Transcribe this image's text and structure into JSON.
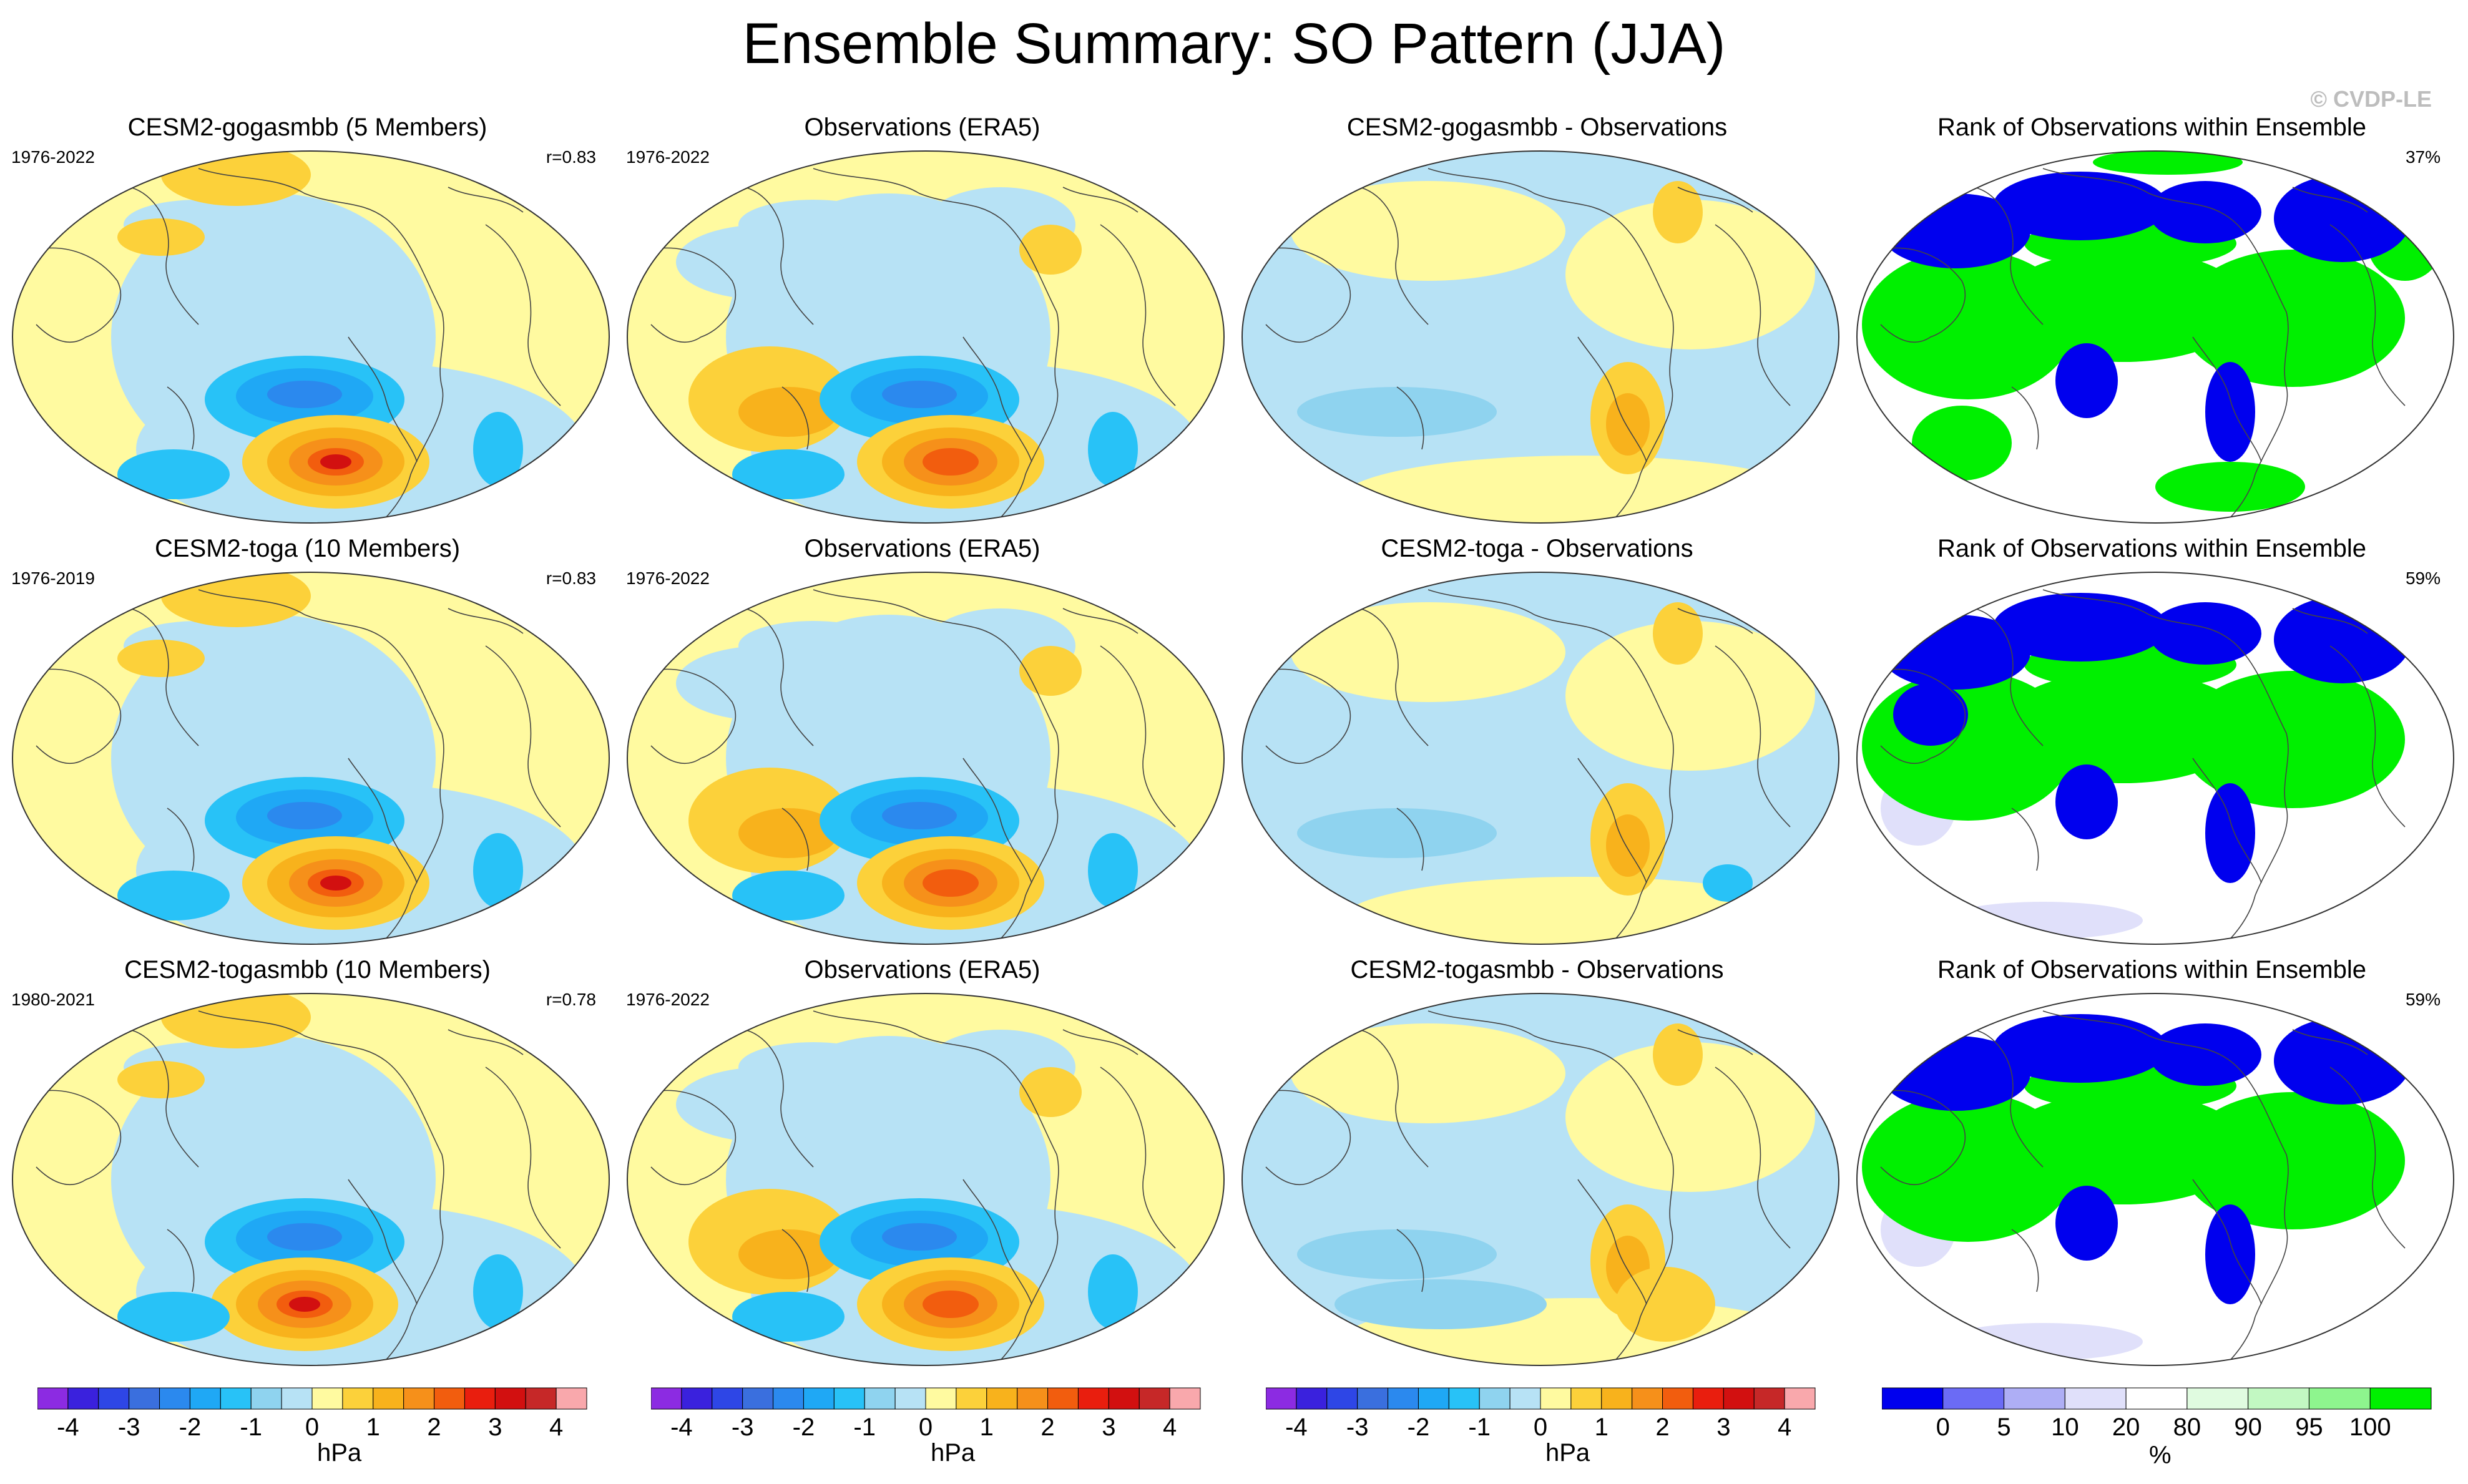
{
  "title": "Ensemble Summary: SO Pattern (JJA)",
  "watermark": "© CVDP-LE",
  "panels": [
    {
      "title": "CESM2-gogasmbb (5 Members)",
      "period": "1976-2022",
      "stat": "r=0.83",
      "kind": "model",
      "variant": 0
    },
    {
      "title": "Observations (ERA5)",
      "period": "1976-2022",
      "stat": "",
      "kind": "obs",
      "variant": 0
    },
    {
      "title": "CESM2-gogasmbb - Observations",
      "period": "",
      "stat": "",
      "kind": "diff",
      "variant": 0
    },
    {
      "title": "Rank of Observations within Ensemble",
      "period": "",
      "stat": "37%",
      "kind": "rank",
      "variant": 0
    },
    {
      "title": "CESM2-toga (10 Members)",
      "period": "1976-2019",
      "stat": "r=0.83",
      "kind": "model",
      "variant": 1
    },
    {
      "title": "Observations (ERA5)",
      "period": "1976-2022",
      "stat": "",
      "kind": "obs",
      "variant": 1
    },
    {
      "title": "CESM2-toga - Observations",
      "period": "",
      "stat": "",
      "kind": "diff",
      "variant": 1
    },
    {
      "title": "Rank of Observations within Ensemble",
      "period": "",
      "stat": "59%",
      "kind": "rank",
      "variant": 1
    },
    {
      "title": "CESM2-togasmbb (10 Members)",
      "period": "1980-2021",
      "stat": "r=0.78",
      "kind": "model",
      "variant": 2
    },
    {
      "title": "Observations (ERA5)",
      "period": "1976-2022",
      "stat": "",
      "kind": "obs",
      "variant": 2
    },
    {
      "title": "CESM2-togasmbb - Observations",
      "period": "",
      "stat": "",
      "kind": "diff",
      "variant": 2
    },
    {
      "title": "Rank of Observations within Ensemble",
      "period": "",
      "stat": "59%",
      "kind": "rank",
      "variant": 2
    }
  ],
  "chart_data": [
    {
      "type": "heatmap",
      "role": "colorbar",
      "unit": "hPa",
      "tick_labels": [
        "-4",
        "-3",
        "-2",
        "-1",
        "0",
        "1",
        "2",
        "3",
        "4"
      ],
      "colors": [
        "#8c2be2",
        "#3a21dd",
        "#2e46e6",
        "#3a6fde",
        "#2b89ee",
        "#1fa8f5",
        "#28c2f7",
        "#8fd3ef",
        "#b7e2f5",
        "#fffaa0",
        "#fcd13a",
        "#f8b21c",
        "#f6901a",
        "#f25d0e",
        "#e91e0e",
        "#d21010",
        "#c62828",
        "#f9a8ac"
      ]
    },
    {
      "type": "heatmap",
      "role": "colorbar",
      "unit": "%",
      "tick_labels": [
        "0",
        "5",
        "10",
        "20",
        "80",
        "90",
        "95",
        "100"
      ],
      "colors": [
        "#0000ee",
        "#6b6bf5",
        "#aeaef5",
        "#e0e0fa",
        "#ffffff",
        "#e0fbe0",
        "#c2f8c2",
        "#8ef58e",
        "#00f000"
      ]
    }
  ],
  "colors": {
    "land_outline": "#444444",
    "map_outline": "#333333",
    "neutral_pos": "#fffaa0",
    "neutral_neg": "#b7e2f5",
    "rank_low": "#0000ee",
    "rank_high": "#00f000",
    "rank_mid": "#e0e0fa"
  }
}
